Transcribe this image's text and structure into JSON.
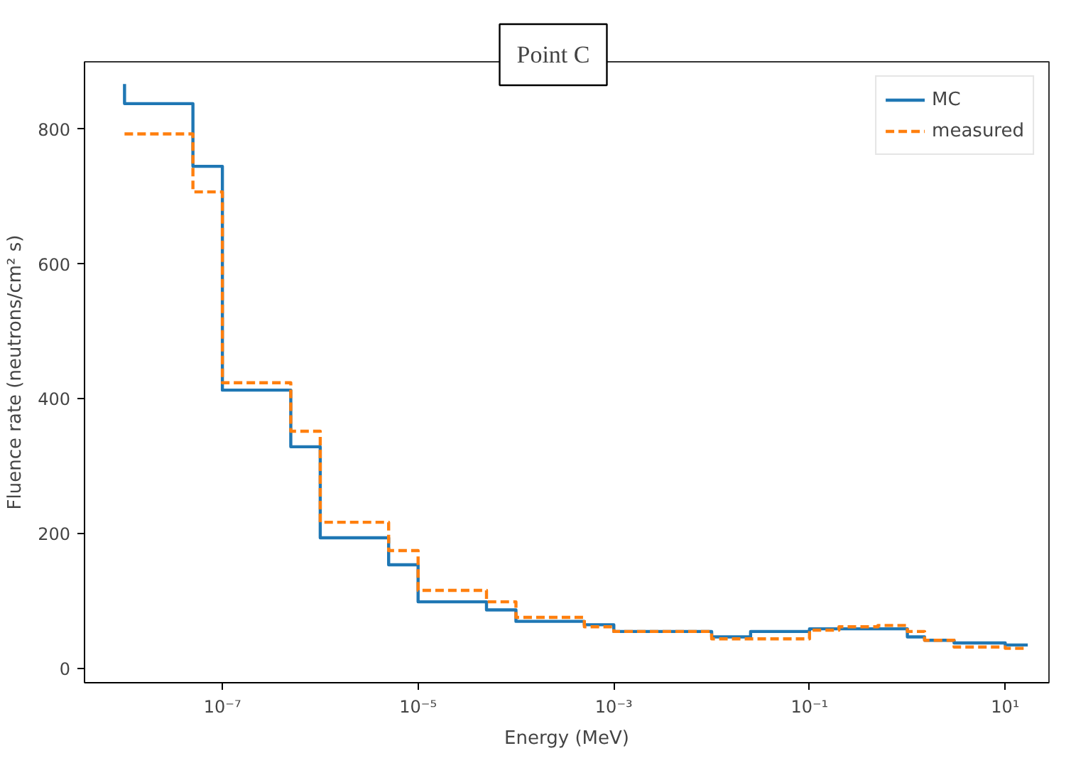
{
  "chart_data": {
    "type": "step",
    "title": "Point C",
    "xlabel": "Energy (MeV)",
    "ylabel": "Fluence rate (neutrons/cm² s)",
    "log": "x",
    "grid": false,
    "legend": "top right",
    "xlim": [
      3.9e-09,
      28
    ],
    "ylim": [
      -21,
      900
    ],
    "xticks": [
      {
        "value": 1e-07,
        "label": "10⁻⁷"
      },
      {
        "value": 1e-05,
        "label": "10⁻⁵"
      },
      {
        "value": 0.001,
        "label": "10⁻³"
      },
      {
        "value": 0.1,
        "label": "10⁻¹"
      },
      {
        "value": 10,
        "label": "10¹"
      }
    ],
    "yticks": [
      0,
      200,
      400,
      600,
      800
    ],
    "series": [
      {
        "name": "MC",
        "color": "#1f77b4",
        "line_style": "solid",
        "x": [
          1e-08,
          5e-08,
          1e-07,
          5e-07,
          1e-06,
          5e-06,
          1e-05,
          5e-05,
          0.0001,
          0.0005,
          0.001,
          0.01,
          0.025,
          0.1,
          1,
          1.5,
          3,
          10,
          17
        ],
        "values": [
          867,
          838,
          745,
          413,
          329,
          194,
          154,
          99,
          87,
          70,
          65,
          55,
          47,
          55,
          59,
          47,
          42,
          38,
          35
        ]
      },
      {
        "name": "measured",
        "color": "#ff7f0e",
        "line_style": "dashed",
        "x": [
          1e-08,
          5e-08,
          1e-07,
          5e-07,
          1e-06,
          5e-06,
          1e-05,
          5e-05,
          0.0001,
          0.0005,
          0.001,
          0.01,
          0.1,
          0.2,
          0.5,
          1,
          1.5,
          3,
          10,
          17
        ],
        "values": [
          793,
          793,
          707,
          424,
          352,
          217,
          175,
          116,
          99,
          76,
          62,
          55,
          44,
          57,
          62,
          64,
          55,
          42,
          32,
          30
        ]
      }
    ]
  }
}
